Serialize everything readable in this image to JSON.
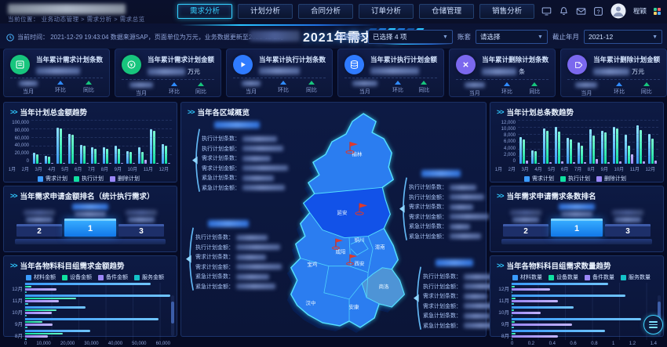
{
  "nav": {
    "breadcrumb": "当前位置： 业务动态管理 > 需求分析 > 需求总览",
    "tabs": [
      {
        "label": "需求分析",
        "active": true
      },
      {
        "label": "计划分析",
        "active": false
      },
      {
        "label": "合同分析",
        "active": false
      },
      {
        "label": "订单分析",
        "active": false
      },
      {
        "label": "仓储管理",
        "active": false
      },
      {
        "label": "销售分析",
        "active": false
      }
    ],
    "user_name": "程颖"
  },
  "header": {
    "title": "2021年需求总览",
    "info": "当前时间： 2021-12-29 19:43:04  数据来源SAP，页面单位为万元，业务数据更新至2021-12-28。",
    "filters": [
      {
        "label": "销售组织",
        "value": "已选择 4 项"
      },
      {
        "label": "账套",
        "value": "请选择"
      },
      {
        "label": "截止年月",
        "value": "2021-12"
      }
    ]
  },
  "kpis": [
    {
      "title": "当年累计需求计划条数",
      "unit": "",
      "icon": "list-icon",
      "color": "#17c57d"
    },
    {
      "title": "当年累计需求计划金额",
      "unit": "万元",
      "icon": "coin-icon",
      "color": "#17c57d"
    },
    {
      "title": "当年累计执行计划条数",
      "unit": "",
      "icon": "play-icon",
      "color": "#2f7bff"
    },
    {
      "title": "当年累计执行计划金额",
      "unit": "",
      "icon": "database-icon",
      "color": "#2f7bff"
    },
    {
      "title": "当年累计删除计划条数",
      "unit": "条",
      "icon": "x-icon",
      "color": "#7b68ee"
    },
    {
      "title": "当年累计删除计划金额",
      "unit": "万元",
      "icon": "tag-icon",
      "color": "#7b68ee"
    }
  ],
  "kpi_stat_labels": [
    "当月",
    "环比",
    "同比"
  ],
  "panels": {
    "amount_trend_title": "当年计划总金额趋势",
    "amount_rank_title": "当年需求申请金额排名（统计执行需求）",
    "material_amount_title": "当年各物料科目组需求金额趋势",
    "region_title": "当年各区域概览",
    "count_trend_title": "当年计划总条数趋势",
    "count_rank_title": "当年需求申请需求条数排名",
    "material_count_title": "当年各物料科目组需求数量趋势"
  },
  "podium": {
    "first": "1",
    "second": "2",
    "third": "3"
  },
  "map": {
    "regions": [
      "榆林",
      "延安",
      "铜川",
      "渭南",
      "咸阳",
      "西安",
      "宝鸡",
      "商洛",
      "汉中",
      "安康"
    ],
    "callout_lines": [
      "执行计划条数：",
      "执行计划金额：",
      "需求计划条数：",
      "需求计划金额：",
      "紧急计划条数：",
      "紧急计划金额："
    ]
  },
  "chart_data": [
    {
      "id": "amount_trend",
      "type": "bar",
      "title": "当年计划总金额趋势",
      "categories": [
        "1月",
        "2月",
        "3月",
        "4月",
        "5月",
        "6月",
        "7月",
        "8月",
        "9月",
        "10月",
        "11月",
        "12月"
      ],
      "series": [
        {
          "name": "需求计划",
          "color": "#3a9bff",
          "color2": "#8fe7ff",
          "values": [
            25000,
            18000,
            83000,
            70000,
            44000,
            38000,
            38000,
            41000,
            30000,
            38000,
            80000,
            46000
          ]
        },
        {
          "name": "执行计划",
          "color": "#10e0a0",
          "color2": "#7dffd4",
          "values": [
            21000,
            16000,
            81000,
            67000,
            42000,
            34000,
            35000,
            35000,
            27000,
            28000,
            76000,
            42000
          ]
        },
        {
          "name": "删除计划",
          "color": "#9a86f5",
          "color2": "#cabdff",
          "values": [
            1500,
            800,
            2000,
            1500,
            1200,
            900,
            1500,
            1200,
            800,
            10000,
            2500,
            1500
          ]
        }
      ],
      "max": 100000,
      "yticks": [
        "0",
        "20,000",
        "40,000",
        "60,000",
        "80,000",
        "100,000"
      ],
      "legend_position": "bottom",
      "grid": true
    },
    {
      "id": "count_trend",
      "type": "bar",
      "title": "当年计划总条数趋势",
      "categories": [
        "1月",
        "2月",
        "3月",
        "4月",
        "5月",
        "6月",
        "7月",
        "8月",
        "9月",
        "10月",
        "11月",
        "12月"
      ],
      "series": [
        {
          "name": "需求计划",
          "color": "#3a9bff",
          "color2": "#8fe7ff",
          "values": [
            7500,
            3800,
            9800,
            10300,
            7200,
            5800,
            9500,
            9200,
            10300,
            8000,
            10700,
            8300
          ]
        },
        {
          "name": "执行计划",
          "color": "#10e0a0",
          "color2": "#7dffd4",
          "values": [
            6800,
            3500,
            9200,
            9000,
            6800,
            5000,
            7800,
            8800,
            9800,
            5000,
            9400,
            7000
          ]
        },
        {
          "name": "删除计划",
          "color": "#9a86f5",
          "color2": "#cabdff",
          "values": [
            900,
            300,
            500,
            600,
            500,
            400,
            1300,
            500,
            600,
            2600,
            600,
            900
          ]
        }
      ],
      "max": 12000,
      "yticks": [
        "0",
        "2,000",
        "4,000",
        "6,000",
        "8,000",
        "10,000",
        "12,000"
      ],
      "legend_position": "bottom",
      "grid": true
    },
    {
      "id": "material_amount",
      "type": "hbar",
      "title": "当年各物料科目组需求金额趋势",
      "categories": [
        "12月",
        "11月",
        "10月",
        "9月",
        "8月"
      ],
      "series": [
        {
          "name": "材料金额",
          "color": "#3a9bff",
          "color2": "#6fc4ff",
          "values": [
            52000,
            60000,
            25000,
            55000,
            27000
          ]
        },
        {
          "name": "设备金额",
          "color": "#10e0a0",
          "color2": "#64f5c8",
          "values": [
            2500,
            21000,
            13000,
            7000,
            15500
          ]
        },
        {
          "name": "备件金额",
          "color": "#9a86f5",
          "color2": "#c2b4ff",
          "values": [
            13000,
            14000,
            11000,
            11500,
            9500
          ]
        },
        {
          "name": "服务金额",
          "color": "#14c2c8",
          "color2": "#6fe6ea",
          "values": [
            800,
            1200,
            600,
            900,
            700
          ]
        }
      ],
      "max": 60000,
      "xticks": [
        "0",
        "10,000",
        "20,000",
        "30,000",
        "40,000",
        "50,000",
        "60,000"
      ],
      "legend_position": "top",
      "grid": true
    },
    {
      "id": "material_count",
      "type": "hbar",
      "title": "当年各物料科目组需求数量趋势",
      "categories": [
        "12月",
        "11月",
        "10月",
        "9月",
        "8月"
      ],
      "series": [
        {
          "name": "材料数量",
          "color": "#3a9bff",
          "color2": "#6fc4ff",
          "values": [
            0.93,
            1.1,
            0.6,
            1.25,
            0.9
          ]
        },
        {
          "name": "设备数量",
          "color": "#10e0a0",
          "color2": "#64f5c8",
          "values": [
            0.03,
            0.04,
            0.02,
            0.03,
            0.04
          ]
        },
        {
          "name": "备件数量",
          "color": "#9a86f5",
          "color2": "#c2b4ff",
          "values": [
            0.37,
            0.45,
            0.28,
            0.58,
            0.45
          ]
        },
        {
          "name": "服务数量",
          "color": "#14c2c8",
          "color2": "#6fe6ea",
          "values": [
            0.01,
            0.02,
            0.01,
            0.02,
            0.01
          ]
        }
      ],
      "max": 1.4,
      "xticks": [
        "0",
        "0.2",
        "0.4",
        "0.6",
        "0.8",
        "1",
        "1.2",
        "1.4"
      ],
      "legend_position": "top",
      "grid": true
    }
  ]
}
